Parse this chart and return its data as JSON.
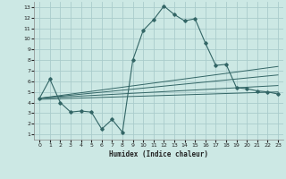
{
  "title": "",
  "xlabel": "Humidex (Indice chaleur)",
  "bg_color": "#cce8e4",
  "grid_color": "#aacccc",
  "line_color": "#336666",
  "xlim": [
    -0.5,
    23.5
  ],
  "ylim": [
    0.5,
    13.5
  ],
  "xticks": [
    0,
    1,
    2,
    3,
    4,
    5,
    6,
    7,
    8,
    9,
    10,
    11,
    12,
    13,
    14,
    15,
    16,
    17,
    18,
    19,
    20,
    21,
    22,
    23
  ],
  "yticks": [
    1,
    2,
    3,
    4,
    5,
    6,
    7,
    8,
    9,
    10,
    11,
    12,
    13
  ],
  "main_line_x": [
    0,
    1,
    2,
    3,
    4,
    5,
    6,
    7,
    8,
    9,
    10,
    11,
    12,
    13,
    14,
    15,
    16,
    17,
    18,
    19,
    20,
    21,
    22,
    23
  ],
  "main_line_y": [
    4.4,
    6.2,
    4.0,
    3.1,
    3.2,
    3.1,
    1.5,
    2.4,
    1.2,
    8.0,
    10.8,
    11.8,
    13.1,
    12.3,
    11.7,
    11.9,
    9.6,
    7.5,
    7.6,
    5.4,
    5.3,
    5.1,
    5.0,
    4.8
  ],
  "trend_lines": [
    {
      "x0": 0,
      "y0": 4.4,
      "x1": 23,
      "y1": 7.4
    },
    {
      "x0": 0,
      "y0": 4.4,
      "x1": 23,
      "y1": 6.6
    },
    {
      "x0": 0,
      "y0": 4.4,
      "x1": 23,
      "y1": 5.6
    },
    {
      "x0": 0,
      "y0": 4.3,
      "x1": 23,
      "y1": 5.0
    }
  ]
}
